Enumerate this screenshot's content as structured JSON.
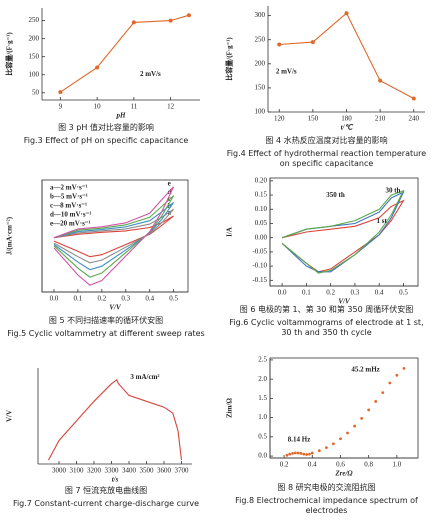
{
  "chart_data": [
    {
      "type": "line",
      "markers": true,
      "xlabel": "pH",
      "ylabel": "比容量/(F·g⁻¹)",
      "x": [
        9,
        10,
        11,
        12,
        12.5
      ],
      "series": [
        {
          "color": "#e0682a",
          "values": [
            52,
            120,
            245,
            250,
            265
          ]
        }
      ],
      "xlim": [
        8.5,
        12.8
      ],
      "xticks": [
        9,
        10,
        11,
        12
      ],
      "ylim": [
        30,
        285
      ],
      "yticks": [
        50,
        100,
        150,
        200,
        250
      ],
      "annotations": [
        "2 mV/s"
      ],
      "caption_cn": "图 3   pH 值对比容量的影响",
      "caption_en": "Fig.3   Effect of pH on specific capacitance"
    },
    {
      "type": "line",
      "markers": true,
      "xlabel": "t/℃",
      "ylabel": "比容量/(F·g⁻¹)",
      "x": [
        120,
        150,
        180,
        210,
        240
      ],
      "series": [
        {
          "color": "#e0682a",
          "values": [
            240,
            245,
            305,
            165,
            128
          ]
        }
      ],
      "xlim": [
        110,
        250
      ],
      "xticks": [
        120,
        150,
        180,
        210,
        240
      ],
      "ylim": [
        100,
        320
      ],
      "yticks": [
        100,
        150,
        200,
        250,
        300
      ],
      "annotations": [
        "2 mV/s"
      ],
      "caption_cn": "图 4   水热反应温度对比容量的影响",
      "caption_en": "Fig.4   Effect of hydrothermal reaction temperature on specific capacitance"
    },
    {
      "type": "line",
      "frame": true,
      "xlabel": "V/V",
      "ylabel": "J/(mA·cm⁻²)",
      "x": [
        0.0,
        0.1,
        0.2,
        0.3,
        0.4,
        0.45,
        0.5,
        0.45,
        0.4,
        0.3,
        0.2,
        0.15,
        0.1,
        0.0
      ],
      "series": [
        {
          "name": "a—2 mV·s⁻¹",
          "color": "#d9443a",
          "values": [
            0.0,
            0.05,
            0.08,
            0.1,
            0.15,
            0.22,
            0.32,
            0.18,
            0.05,
            -0.1,
            -0.25,
            -0.28,
            -0.2,
            -0.05
          ]
        },
        {
          "name": "b—5 mV·s⁻¹",
          "color": "#8c8c8c",
          "values": [
            0.0,
            0.07,
            0.1,
            0.13,
            0.2,
            0.3,
            0.42,
            0.22,
            0.06,
            -0.14,
            -0.33,
            -0.37,
            -0.28,
            -0.08
          ]
        },
        {
          "name": "c—8 mV·s⁻¹",
          "color": "#3f8fc4",
          "values": [
            0.0,
            0.09,
            0.12,
            0.16,
            0.25,
            0.38,
            0.52,
            0.27,
            0.07,
            -0.18,
            -0.42,
            -0.47,
            -0.36,
            -0.1
          ]
        },
        {
          "name": "d—10 mV·s⁻¹",
          "color": "#5aaa4a",
          "values": [
            0.0,
            0.11,
            0.14,
            0.19,
            0.3,
            0.46,
            0.62,
            0.32,
            0.08,
            -0.22,
            -0.52,
            -0.58,
            -0.45,
            -0.12
          ]
        },
        {
          "name": "e—20 mV·s⁻¹",
          "color": "#d255a8",
          "values": [
            0.0,
            0.13,
            0.16,
            0.22,
            0.36,
            0.56,
            0.75,
            0.38,
            0.09,
            -0.27,
            -0.63,
            -0.7,
            -0.55,
            -0.15
          ]
        }
      ],
      "curve_labels": [
        "a",
        "b",
        "c",
        "d",
        "e"
      ],
      "xlim": [
        -0.05,
        0.56
      ],
      "xticks": [
        {
          "value": 0.0,
          "label": "0.0"
        },
        0.1,
        0.2,
        0.3,
        0.4,
        0.5
      ],
      "ylim": [
        -0.8,
        0.85
      ],
      "caption_cn": "图 5   不同扫描速率的循环伏安图",
      "caption_en": "Fig.5   Cyclic voltammetry at different sweep rates"
    },
    {
      "type": "line",
      "frame": true,
      "xlabel": "V/V",
      "ylabel": "I/A",
      "x": [
        0.0,
        0.1,
        0.2,
        0.3,
        0.4,
        0.45,
        0.5,
        0.45,
        0.4,
        0.3,
        0.2,
        0.15,
        0.1,
        0.0
      ],
      "series": [
        {
          "color": "#d9443a",
          "values": [
            0.0,
            0.02,
            0.03,
            0.04,
            0.07,
            0.11,
            0.13,
            0.06,
            0.01,
            -0.05,
            -0.11,
            -0.12,
            -0.09,
            -0.02
          ]
        },
        {
          "color": "#3f6fc4",
          "values": [
            0.0,
            0.03,
            0.04,
            0.05,
            0.09,
            0.14,
            0.16,
            0.07,
            0.01,
            -0.06,
            -0.12,
            -0.12,
            -0.1,
            -0.02
          ]
        },
        {
          "color": "#5aaa4a",
          "values": [
            0.0,
            0.03,
            0.04,
            0.06,
            0.1,
            0.15,
            0.165,
            0.08,
            0.02,
            -0.06,
            -0.115,
            -0.125,
            -0.09,
            -0.02
          ]
        }
      ],
      "xlim": [
        -0.05,
        0.56
      ],
      "xticks": [
        {
          "value": 0.0,
          "label": "0.0"
        },
        0.1,
        0.2,
        0.3,
        0.4,
        0.5
      ],
      "ylim": [
        -0.17,
        0.21
      ],
      "yticks": [
        {
          "value": -0.15,
          "label": "-0.15"
        },
        {
          "value": -0.1,
          "label": "-0.10"
        },
        {
          "value": -0.05,
          "label": "-0.05"
        },
        {
          "value": 0,
          "label": "0.00"
        },
        {
          "value": 0.05,
          "label": "0.05"
        },
        {
          "value": 0.1,
          "label": "0.10"
        },
        {
          "value": 0.15,
          "label": "0.15"
        },
        {
          "value": 0.2,
          "label": "0.20"
        }
      ],
      "annotations": [
        "350 th",
        "30 th",
        "1 st"
      ],
      "caption_cn": "图 6   电极的第 1、第 30 和第 350 周循环伏安图",
      "caption_en": "Fig.6   Cyclic voltammograms of electrode at 1 st, 30 th and 350 th cycle"
    },
    {
      "type": "line",
      "xlabel": "t/s",
      "ylabel": "V/V",
      "x": [
        2940,
        3000,
        3100,
        3200,
        3300,
        3330,
        3340,
        3400,
        3500,
        3600,
        3650,
        3680,
        3700
      ],
      "series": [
        {
          "color": "#d9443a",
          "values": [
            0.0,
            0.1,
            0.2,
            0.3,
            0.39,
            0.41,
            0.39,
            0.33,
            0.3,
            0.27,
            0.24,
            0.15,
            0.0
          ]
        }
      ],
      "xlim": [
        2880,
        3760
      ],
      "xticks": [
        3000,
        3100,
        3200,
        3300,
        3400,
        3500,
        3600,
        3700
      ],
      "ylim": [
        -0.02,
        0.47
      ],
      "annotations": [
        "3 mA/cm²"
      ],
      "caption_cn": "图 7   恒流充放电曲线图",
      "caption_en": "Fig.7   Constant-current charge-discharge curve"
    },
    {
      "type": "scatter",
      "frame": true,
      "xlabel": "Zre/Ω",
      "ylabel": "Zim/Ω",
      "x": [
        0.22,
        0.24,
        0.26,
        0.28,
        0.3,
        0.32,
        0.34,
        0.36,
        0.38,
        0.4,
        0.45,
        0.5,
        0.55,
        0.6,
        0.65,
        0.7,
        0.75,
        0.8,
        0.85,
        0.9,
        0.95,
        1.0,
        1.05
      ],
      "series": [
        {
          "color": "#e0682a",
          "values": [
            0.02,
            0.05,
            0.07,
            0.08,
            0.08,
            0.07,
            0.05,
            0.04,
            0.05,
            0.08,
            0.14,
            0.22,
            0.32,
            0.45,
            0.6,
            0.78,
            0.98,
            1.2,
            1.42,
            1.65,
            1.9,
            2.1,
            2.28
          ]
        }
      ],
      "xlim": [
        0.1,
        1.15
      ],
      "xticks": [
        0.2,
        0.4,
        0.6,
        0.8,
        {
          "value": 1.0,
          "label": "1.0"
        }
      ],
      "ylim": [
        -0.05,
        2.55
      ],
      "yticks": [
        {
          "value": 0,
          "label": "0.0"
        },
        0.5,
        {
          "value": 1.0,
          "label": "1.0"
        },
        1.5,
        {
          "value": 2.0,
          "label": "2.0"
        },
        2.5
      ],
      "annotations": [
        "45.2 mHz",
        "8.14 Hz"
      ],
      "caption_cn": "图 8   研究电极的交流阻抗图",
      "caption_en": "Fig.8   Electrochemical impedance spectrum of electrodes"
    }
  ]
}
